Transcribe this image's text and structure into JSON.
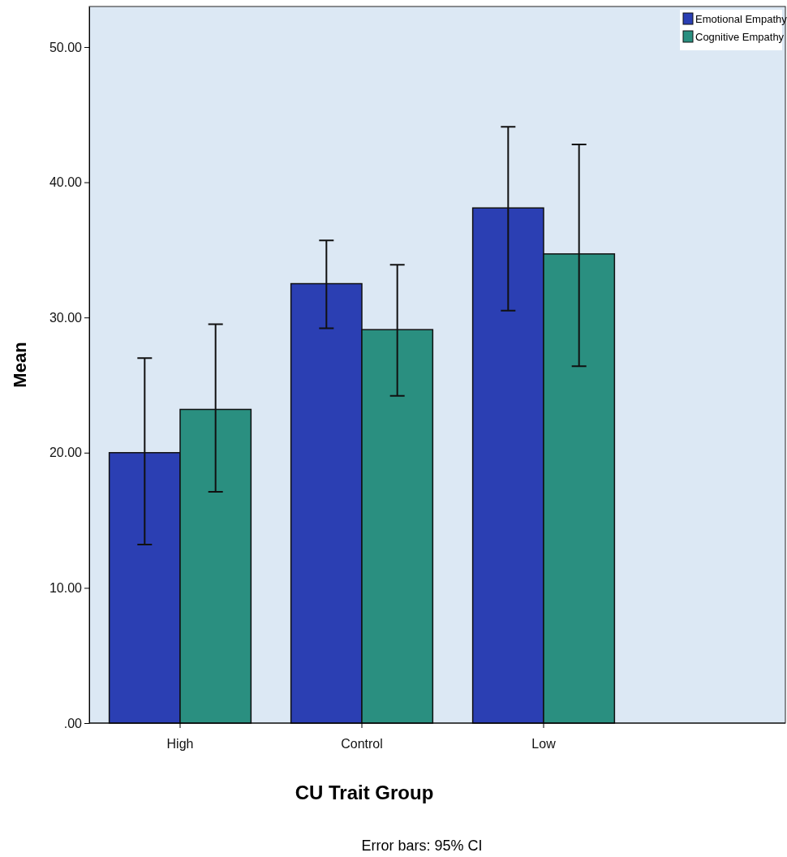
{
  "chart_data": {
    "type": "bar",
    "xlabel": "CU Trait Group",
    "ylabel": "Mean",
    "categories": [
      "High",
      "Control",
      "Low"
    ],
    "series": [
      {
        "name": "Emotional Empathy",
        "color": "#2b3fb3",
        "values": [
          20.0,
          32.5,
          38.1
        ],
        "errors": [
          [
            13.2,
            27.0
          ],
          [
            29.2,
            35.7
          ],
          [
            30.5,
            44.1
          ]
        ]
      },
      {
        "name": "Cognitive Empathy",
        "color": "#2a8f80",
        "values": [
          23.2,
          29.1,
          34.7
        ],
        "errors": [
          [
            17.1,
            29.5
          ],
          [
            24.2,
            33.9
          ],
          [
            26.4,
            42.8
          ]
        ]
      }
    ],
    "ylim": [
      0,
      53
    ],
    "yticks": [
      {
        "value": 0,
        "label": ".00"
      },
      {
        "value": 10,
        "label": "10.00"
      },
      {
        "value": 20,
        "label": "20.00"
      },
      {
        "value": 30,
        "label": "30.00"
      },
      {
        "value": 40,
        "label": "40.00"
      },
      {
        "value": 50,
        "label": "50.00"
      }
    ],
    "legend": "top right",
    "annotations": [
      "Error bars: 95% CI"
    ]
  }
}
